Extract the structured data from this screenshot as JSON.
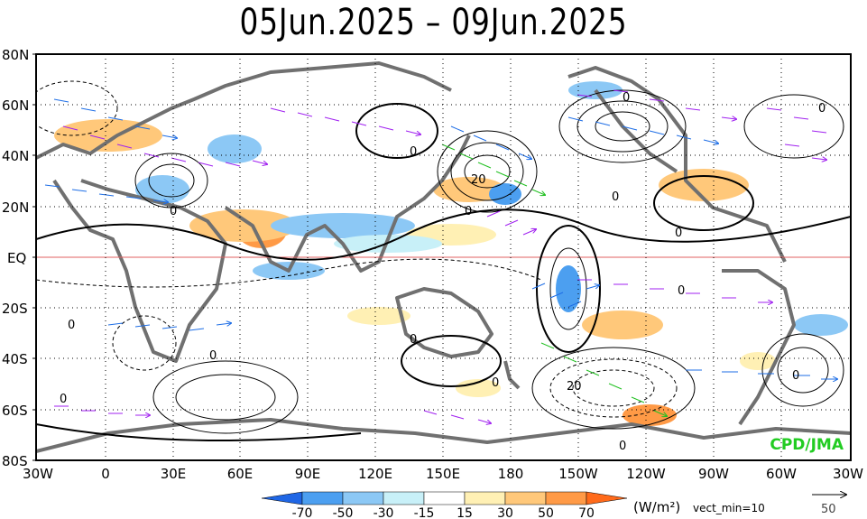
{
  "title": "05Jun.2025 – 09Jun.2025",
  "lat_labels": [
    "80N",
    "60N",
    "40N",
    "20N",
    "EQ",
    "20S",
    "40S",
    "60S",
    "80S"
  ],
  "lon_labels": [
    "30W",
    "0",
    "30E",
    "60E",
    "90E",
    "120E",
    "150E",
    "180",
    "150W",
    "120W",
    "90W",
    "60W",
    "30W"
  ],
  "contour_labels": [
    "0",
    "0",
    "0",
    "0",
    "0",
    "0",
    "0",
    "0",
    "20",
    "0",
    "0",
    "0",
    "0",
    "0",
    "20",
    "0",
    "0"
  ],
  "colorbar": {
    "ticks": [
      "-70",
      "-50",
      "-30",
      "-15",
      "15",
      "30",
      "50",
      "70"
    ],
    "colors": [
      "#1f66e5",
      "#4c9ff0",
      "#8cc8f5",
      "#c8f0f8",
      "#ffffff",
      "#fff0b4",
      "#ffc87a",
      "#ff9a46",
      "#ff6a1a"
    ],
    "unit": "(W/m²)",
    "vect_label": "vect_min=10",
    "ref_vector_value": "50"
  },
  "credit": "CPD/JMA",
  "colors": {
    "vector_purple": "#a020f0",
    "vector_blue": "#1e6ee6",
    "vector_green": "#22c022",
    "coast": "#707070",
    "equator": "#e06060",
    "credit": "#22cc22"
  }
}
